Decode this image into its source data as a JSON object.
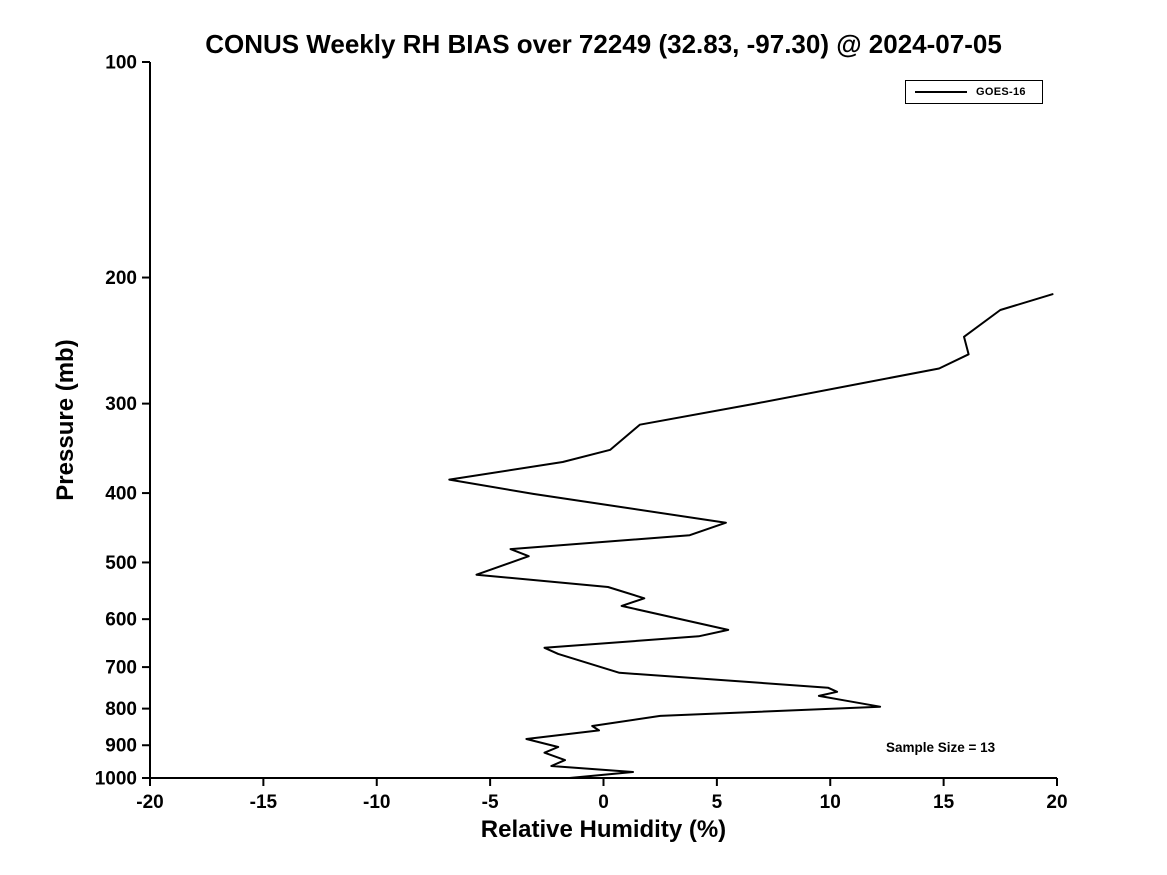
{
  "chart_data": {
    "type": "line",
    "title": "CONUS Weekly RH BIAS over 72249 (32.83, -97.30) @ 2024-07-05",
    "xlabel": "Relative Humidity (%)",
    "ylabel": "Pressure (mb)",
    "xlim": [
      -20,
      20
    ],
    "ylim": [
      100,
      1000
    ],
    "y_scale": "log10",
    "y_axis_direction": "inverted (pressure decreases upward)",
    "x_ticks": [
      -20,
      -15,
      -10,
      -5,
      0,
      5,
      10,
      15,
      20
    ],
    "y_ticks": [
      100,
      200,
      300,
      400,
      500,
      600,
      700,
      800,
      900,
      1000
    ],
    "grid": false,
    "legend": {
      "position": "top-right",
      "entries": [
        "GOES-16"
      ]
    },
    "annotation": "Sample Size = 13",
    "colors": {
      "line": "#000000",
      "axes": "#000000",
      "background": "#ffffff"
    },
    "series": [
      {
        "name": "GOES-16",
        "color": "#000000",
        "point_format": [
          "relative_humidity_bias_percent",
          "pressure_mb"
        ],
        "points": [
          [
            19.8,
            211
          ],
          [
            17.5,
            222
          ],
          [
            15.9,
            242
          ],
          [
            16.1,
            256
          ],
          [
            14.8,
            268
          ],
          [
            6.7,
            300
          ],
          [
            1.6,
            321
          ],
          [
            0.3,
            348
          ],
          [
            -1.8,
            362
          ],
          [
            -6.8,
            383
          ],
          [
            -3.1,
            401
          ],
          [
            5.4,
            440
          ],
          [
            3.8,
            458
          ],
          [
            -4.1,
            479
          ],
          [
            -3.3,
            490
          ],
          [
            -5.6,
            520
          ],
          [
            0.2,
            541
          ],
          [
            1.8,
            561
          ],
          [
            0.8,
            575
          ],
          [
            5.5,
            621
          ],
          [
            4.2,
            634
          ],
          [
            -2.6,
            658
          ],
          [
            -2.0,
            671
          ],
          [
            0.7,
            713
          ],
          [
            9.9,
            748
          ],
          [
            10.3,
            758
          ],
          [
            9.5,
            768
          ],
          [
            10.6,
            779
          ],
          [
            12.2,
            795
          ],
          [
            2.5,
            819
          ],
          [
            -0.5,
            846
          ],
          [
            -0.2,
            858
          ],
          [
            -3.4,
            882
          ],
          [
            -2.0,
            905
          ],
          [
            -2.6,
            922
          ],
          [
            -1.7,
            944
          ],
          [
            -2.3,
            962
          ],
          [
            1.3,
            981
          ],
          [
            -1.5,
            1000
          ]
        ]
      }
    ]
  }
}
